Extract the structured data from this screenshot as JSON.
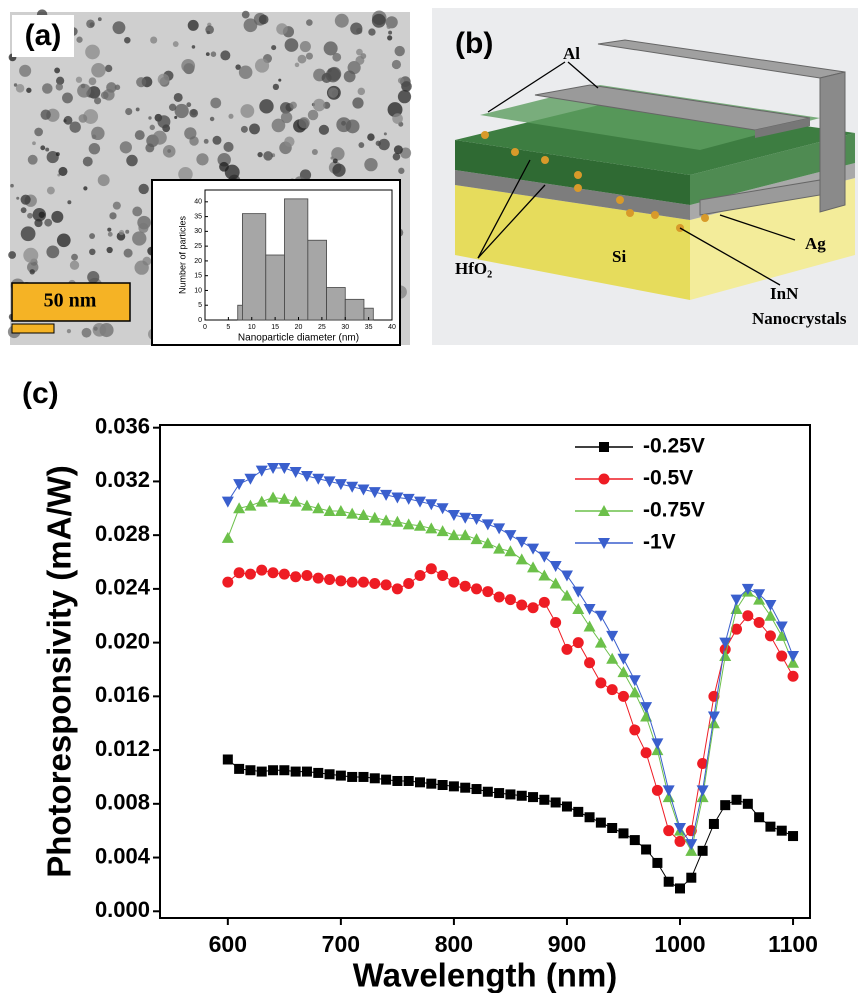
{
  "panels": [
    {
      "label": "(a)",
      "scale_bar": "50 nm"
    },
    {
      "label": "(b)",
      "layers": {
        "al": "Al",
        "hfo2": "HfO₂",
        "si": "Si",
        "ag": "Ag",
        "inn": [
          "InN",
          "Nanocrystals"
        ]
      }
    },
    {
      "label": "(c)"
    }
  ],
  "chart_data": [
    {
      "type": "histogram",
      "xlabel": "Nanoparticle diameter (nm)",
      "ylabel": "Number of particles",
      "bins": [
        7,
        8,
        13,
        17,
        22,
        26,
        30,
        34,
        36
      ],
      "values": [
        5,
        36,
        22,
        41,
        27,
        11,
        7,
        4
      ],
      "color": "#a6a6a6",
      "xlim": [
        0,
        40
      ],
      "ylim": [
        0,
        44
      ],
      "xticks": [
        0,
        5,
        10,
        15,
        20,
        25,
        30,
        35,
        40
      ],
      "yticks": [
        0,
        5,
        10,
        15,
        20,
        25,
        30,
        35,
        40
      ]
    },
    {
      "type": "line",
      "xlabel": "Wavelength (nm)",
      "ylabel": "Photoresponsivity (mA/W)",
      "x": [
        600,
        610,
        620,
        630,
        640,
        650,
        660,
        670,
        680,
        690,
        700,
        710,
        720,
        730,
        740,
        750,
        760,
        770,
        780,
        790,
        800,
        810,
        820,
        830,
        840,
        850,
        860,
        870,
        880,
        890,
        900,
        910,
        920,
        930,
        940,
        950,
        960,
        970,
        980,
        990,
        1000,
        1010,
        1020,
        1030,
        1040,
        1050,
        1060,
        1070,
        1080,
        1090,
        1100
      ],
      "series": [
        {
          "name": "-0.25V",
          "color": "#000000",
          "marker": "square",
          "values": [
            0.0113,
            0.0106,
            0.0105,
            0.0104,
            0.0105,
            0.0105,
            0.0104,
            0.0104,
            0.0103,
            0.0102,
            0.0101,
            0.01,
            0.01,
            0.0099,
            0.0098,
            0.0097,
            0.0097,
            0.0096,
            0.0095,
            0.0094,
            0.0093,
            0.0092,
            0.0091,
            0.0089,
            0.0088,
            0.0087,
            0.0086,
            0.0085,
            0.0083,
            0.0081,
            0.0078,
            0.0074,
            0.007,
            0.0066,
            0.0062,
            0.0058,
            0.0053,
            0.0046,
            0.0036,
            0.0022,
            0.0017,
            0.0025,
            0.0045,
            0.0065,
            0.0079,
            0.0083,
            0.008,
            0.007,
            0.0063,
            0.006,
            0.0056
          ]
        },
        {
          "name": "-0.5V",
          "color": "#ee1c24",
          "marker": "circle",
          "values": [
            0.0245,
            0.0252,
            0.0251,
            0.0254,
            0.0252,
            0.0251,
            0.0249,
            0.025,
            0.0248,
            0.0247,
            0.0246,
            0.0245,
            0.0245,
            0.0244,
            0.0243,
            0.024,
            0.0244,
            0.025,
            0.0255,
            0.025,
            0.0245,
            0.0242,
            0.024,
            0.0238,
            0.0234,
            0.0232,
            0.0228,
            0.0226,
            0.023,
            0.0215,
            0.0195,
            0.02,
            0.0185,
            0.017,
            0.0165,
            0.016,
            0.0135,
            0.0118,
            0.009,
            0.006,
            0.0052,
            0.006,
            0.011,
            0.016,
            0.0195,
            0.021,
            0.022,
            0.0215,
            0.0205,
            0.019,
            0.0175
          ]
        },
        {
          "name": "-0.75V",
          "color": "#6cc04a",
          "marker": "triangle-up",
          "values": [
            0.0278,
            0.03,
            0.0302,
            0.0305,
            0.0308,
            0.0307,
            0.0305,
            0.0302,
            0.03,
            0.0298,
            0.0298,
            0.0296,
            0.0295,
            0.0293,
            0.0291,
            0.029,
            0.0288,
            0.0287,
            0.0285,
            0.0283,
            0.028,
            0.028,
            0.0277,
            0.0274,
            0.027,
            0.0268,
            0.0262,
            0.0256,
            0.025,
            0.0244,
            0.0235,
            0.0225,
            0.0212,
            0.02,
            0.0188,
            0.0178,
            0.0163,
            0.0145,
            0.012,
            0.0085,
            0.006,
            0.0045,
            0.0085,
            0.014,
            0.019,
            0.0225,
            0.0238,
            0.0232,
            0.022,
            0.0205,
            0.0185
          ]
        },
        {
          "name": "-1V",
          "color": "#3a5fcd",
          "marker": "triangle-down",
          "values": [
            0.0305,
            0.0318,
            0.0322,
            0.0328,
            0.033,
            0.033,
            0.0327,
            0.0324,
            0.0322,
            0.032,
            0.0318,
            0.0316,
            0.0314,
            0.0312,
            0.031,
            0.0308,
            0.0307,
            0.0305,
            0.0303,
            0.03,
            0.0295,
            0.0293,
            0.0292,
            0.0288,
            0.0285,
            0.028,
            0.0275,
            0.027,
            0.0264,
            0.0257,
            0.025,
            0.0238,
            0.0225,
            0.022,
            0.0205,
            0.0188,
            0.0172,
            0.0152,
            0.0125,
            0.009,
            0.0062,
            0.005,
            0.009,
            0.0145,
            0.02,
            0.0232,
            0.024,
            0.0236,
            0.0228,
            0.0212,
            0.019
          ]
        }
      ],
      "xlim": [
        540,
        1115
      ],
      "ylim": [
        -0.0005,
        0.0362
      ],
      "xticks": [
        600,
        700,
        800,
        900,
        1000,
        1100
      ],
      "yticks": [
        {
          "value": 0,
          "label": "0.000"
        },
        0.004,
        0.008,
        0.012,
        0.016,
        {
          "value": 0.02,
          "label": "0.020"
        },
        0.024,
        0.028,
        0.032,
        0.036
      ],
      "legend": "upper right"
    }
  ]
}
